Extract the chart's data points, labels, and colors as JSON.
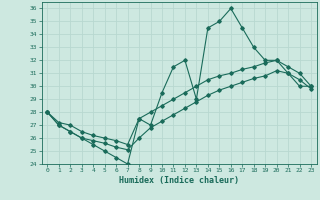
{
  "title": "",
  "xlabel": "Humidex (Indice chaleur)",
  "xlim": [
    -0.5,
    23.5
  ],
  "ylim": [
    24,
    36.5
  ],
  "yticks": [
    24,
    25,
    26,
    27,
    28,
    29,
    30,
    31,
    32,
    33,
    34,
    35,
    36
  ],
  "xticks": [
    0,
    1,
    2,
    3,
    4,
    5,
    6,
    7,
    8,
    9,
    10,
    11,
    12,
    13,
    14,
    15,
    16,
    17,
    18,
    19,
    20,
    21,
    22,
    23
  ],
  "bg_color": "#cde8e0",
  "line_color": "#1a6b5a",
  "grid_color": "#b8d8d0",
  "line1_x": [
    0,
    1,
    2,
    3,
    4,
    5,
    6,
    7,
    8,
    9,
    10,
    11,
    12,
    13,
    14,
    15,
    16,
    17,
    18,
    19,
    20,
    21,
    22,
    23
  ],
  "line1_y": [
    28.0,
    27.0,
    26.5,
    26.0,
    25.5,
    25.0,
    24.5,
    24.0,
    27.5,
    27.0,
    29.5,
    31.5,
    32.0,
    29.0,
    34.5,
    35.0,
    36.0,
    34.5,
    33.0,
    32.0,
    32.0,
    31.0,
    30.0,
    30.0
  ],
  "line2_x": [
    0,
    1,
    2,
    3,
    4,
    5,
    6,
    7,
    8,
    9,
    10,
    11,
    12,
    13,
    14,
    15,
    16,
    17,
    18,
    19,
    20,
    21,
    22,
    23
  ],
  "line2_y": [
    28.0,
    27.2,
    27.0,
    26.5,
    26.2,
    26.0,
    25.8,
    25.5,
    27.5,
    28.0,
    28.5,
    29.0,
    29.5,
    30.0,
    30.5,
    30.8,
    31.0,
    31.3,
    31.5,
    31.8,
    32.0,
    31.5,
    31.0,
    30.0
  ],
  "line3_x": [
    0,
    1,
    2,
    3,
    4,
    5,
    6,
    7,
    8,
    9,
    10,
    11,
    12,
    13,
    14,
    15,
    16,
    17,
    18,
    19,
    20,
    21,
    22,
    23
  ],
  "line3_y": [
    28.0,
    27.0,
    26.5,
    26.0,
    25.8,
    25.6,
    25.3,
    25.1,
    26.0,
    26.8,
    27.3,
    27.8,
    28.3,
    28.8,
    29.3,
    29.7,
    30.0,
    30.3,
    30.6,
    30.8,
    31.2,
    31.0,
    30.5,
    29.8
  ]
}
